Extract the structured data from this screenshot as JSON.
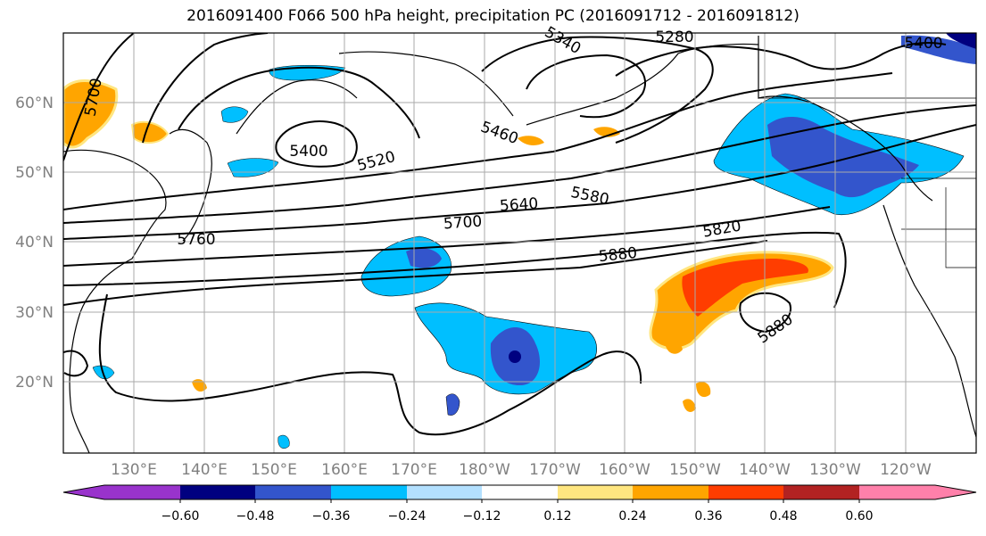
{
  "title": "2016091400 F066 500 hPa height, precipitation PC (2016091712 - 2016091812)",
  "lat_labels": [
    "60°N",
    "50°N",
    "40°N",
    "30°N",
    "20°N"
  ],
  "lon_labels": [
    "130°E",
    "140°E",
    "150°E",
    "160°E",
    "170°E",
    "180°W",
    "170°W",
    "160°W",
    "150°W",
    "140°W",
    "130°W",
    "120°W"
  ],
  "contour_labels": [
    "5700",
    "5340",
    "5280",
    "5400",
    "5520",
    "5460",
    "5580",
    "5640",
    "5700",
    "5760",
    "5820",
    "5880",
    "5880",
    "5400"
  ],
  "colorbar": {
    "colors": [
      "#9933cc",
      "#000080",
      "#3355cc",
      "#00bfff",
      "#b3e0ff",
      "#ffffff",
      "#ffe680",
      "#ffa500",
      "#ff3d00",
      "#b22222",
      "#ff80aa"
    ],
    "tick_labels": [
      "−0.60",
      "−0.48",
      "−0.36",
      "−0.24",
      "−0.12",
      "0.12",
      "0.24",
      "0.36",
      "0.48",
      "0.60"
    ]
  },
  "colors": {
    "grid": "#aaaaaa",
    "contour": "#000000",
    "axis_label": "#808080"
  }
}
